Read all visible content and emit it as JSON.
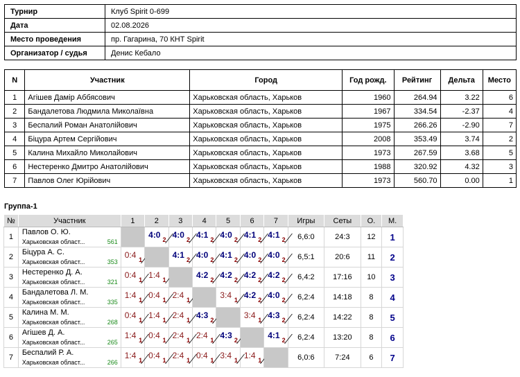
{
  "info": [
    {
      "key": "Турнир",
      "value": "Клуб Spirit 0-699"
    },
    {
      "key": "Дата",
      "value": "02.08.2026"
    },
    {
      "key": "Место проведения",
      "value": "пр. Гагарина, 70 КНТ Spirit"
    },
    {
      "key": "Организатор / судья",
      "value": "Денис Кебало"
    }
  ],
  "participants": {
    "headers": [
      "N",
      "Участник",
      "Город",
      "Год рожд.",
      "Рейтинг",
      "Дельта",
      "Место"
    ],
    "rows": [
      [
        "1",
        "Агішев Дамір Аббясович",
        "Харьковская область, Харьков",
        "1960",
        "264.94",
        "3.22",
        "6"
      ],
      [
        "2",
        "Бандалетова Людмила Миколаївна",
        "Харьковская область, Харьков",
        "1967",
        "334.54",
        "-2.37",
        "4"
      ],
      [
        "3",
        "Беспалий Роман Анатолійович",
        "Харьковская область, Харьков",
        "1975",
        "266.26",
        "-2.90",
        "7"
      ],
      [
        "4",
        "Біцура Артем Сергійович",
        "Харьковская область, Харьков",
        "2008",
        "353.49",
        "3.74",
        "2"
      ],
      [
        "5",
        "Калина Михайло Миколайович",
        "Харьковская область, Харьков",
        "1973",
        "267.59",
        "3.68",
        "5"
      ],
      [
        "6",
        "Нестеренко Дмитро Анатолійович",
        "Харьковская область, Харьков",
        "1988",
        "320.92",
        "4.32",
        "3"
      ],
      [
        "7",
        "Павлов Олег Юрійович",
        "Харьковская область, Харьков",
        "1973",
        "560.70",
        "0.00",
        "1"
      ]
    ]
  },
  "group": {
    "title": "Группа-1",
    "headers": [
      "№",
      "Участник",
      "1",
      "2",
      "3",
      "4",
      "5",
      "6",
      "7",
      "Игры",
      "Сеты",
      "О.",
      "М."
    ],
    "rows": [
      {
        "n": "1",
        "name": "Павлов О. Ю.",
        "city": "Харьковская област...",
        "rating": "561",
        "cells": [
          null,
          [
            "4:0",
            "2"
          ],
          [
            "4:0",
            "2"
          ],
          [
            "4:1",
            "2"
          ],
          [
            "4:0",
            "2"
          ],
          [
            "4:1",
            "2"
          ],
          [
            "4:1",
            "2"
          ]
        ],
        "games": "6,6:0",
        "sets": "24:3",
        "o": "12",
        "m": "1"
      },
      {
        "n": "2",
        "name": "Біцура А. С.",
        "city": "Харьковская област...",
        "rating": "353",
        "cells": [
          [
            "0:4",
            "1"
          ],
          null,
          [
            "4:1",
            "2"
          ],
          [
            "4:0",
            "2"
          ],
          [
            "4:1",
            "2"
          ],
          [
            "4:0",
            "2"
          ],
          [
            "4:0",
            "2"
          ]
        ],
        "games": "6,5:1",
        "sets": "20:6",
        "o": "11",
        "m": "2"
      },
      {
        "n": "3",
        "name": "Нестеренко Д. А.",
        "city": "Харьковская област...",
        "rating": "321",
        "cells": [
          [
            "0:4",
            "1"
          ],
          [
            "1:4",
            "1"
          ],
          null,
          [
            "4:2",
            "2"
          ],
          [
            "4:2",
            "2"
          ],
          [
            "4:2",
            "2"
          ],
          [
            "4:2",
            "2"
          ]
        ],
        "games": "6,4:2",
        "sets": "17:16",
        "o": "10",
        "m": "3"
      },
      {
        "n": "4",
        "name": "Бандалетова Л. М.",
        "city": "Харьковская област...",
        "rating": "335",
        "cells": [
          [
            "1:4",
            "1"
          ],
          [
            "0:4",
            "1"
          ],
          [
            "2:4",
            "1"
          ],
          null,
          [
            "3:4",
            "1"
          ],
          [
            "4:2",
            "2"
          ],
          [
            "4:0",
            "2"
          ]
        ],
        "games": "6,2:4",
        "sets": "14:18",
        "o": "8",
        "m": "4"
      },
      {
        "n": "5",
        "name": "Калина М. М.",
        "city": "Харьковская област...",
        "rating": "268",
        "cells": [
          [
            "0:4",
            "1"
          ],
          [
            "1:4",
            "1"
          ],
          [
            "2:4",
            "1"
          ],
          [
            "4:3",
            "2"
          ],
          null,
          [
            "3:4",
            "1"
          ],
          [
            "4:3",
            "2"
          ]
        ],
        "games": "6,2:4",
        "sets": "14:22",
        "o": "8",
        "m": "5"
      },
      {
        "n": "6",
        "name": "Агішев Д. А.",
        "city": "Харьковская област...",
        "rating": "265",
        "cells": [
          [
            "1:4",
            "1"
          ],
          [
            "0:4",
            "1"
          ],
          [
            "2:4",
            "1"
          ],
          [
            "2:4",
            "1"
          ],
          [
            "4:3",
            "2"
          ],
          null,
          [
            "4:1",
            "2"
          ]
        ],
        "games": "6,2:4",
        "sets": "13:20",
        "o": "8",
        "m": "6"
      },
      {
        "n": "7",
        "name": "Беспалий Р. А.",
        "city": "Харьковская област...",
        "rating": "266",
        "cells": [
          [
            "1:4",
            "1"
          ],
          [
            "0:4",
            "1"
          ],
          [
            "2:4",
            "1"
          ],
          [
            "0:4",
            "1"
          ],
          [
            "3:4",
            "1"
          ],
          [
            "1:4",
            "1"
          ],
          null
        ],
        "games": "6,0:6",
        "sets": "7:24",
        "o": "6",
        "m": "7"
      }
    ]
  }
}
